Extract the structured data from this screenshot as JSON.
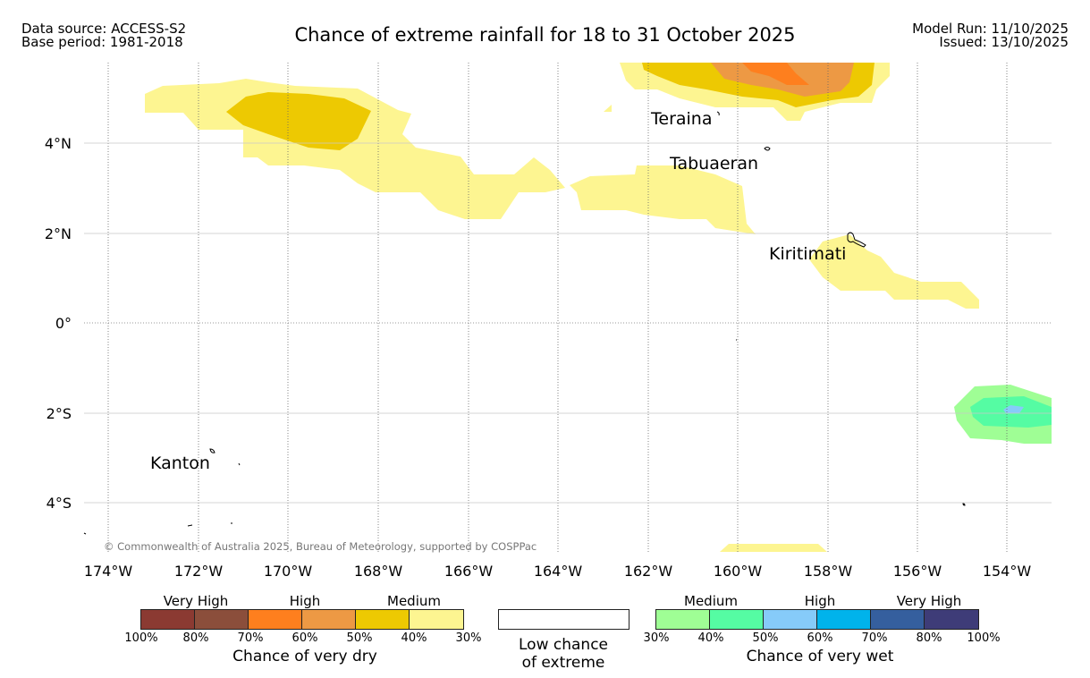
{
  "header": {
    "source_line": "Data source: ACCESS-S2",
    "base_line": "Base period: 1981-2018",
    "title": "Chance of extreme rainfall for 18 to 31 October 2025",
    "model_run": "Model Run: 11/10/2025",
    "issued": "Issued: 13/10/2025"
  },
  "map": {
    "copyright": "© Commonwealth of Australia 2025, Bureau of Meteorology, supported by COSPPac",
    "lon_ticks": [
      "174°W",
      "172°W",
      "170°W",
      "168°W",
      "166°W",
      "164°W",
      "162°W",
      "160°W",
      "158°W",
      "156°W",
      "154°W"
    ],
    "lat_ticks": [
      "4°N",
      "2°N",
      "0°",
      "2°S",
      "4°S"
    ],
    "places": [
      "Teraina",
      "Tabuaeran",
      "Kiritimati",
      "Kanton"
    ],
    "colors": {
      "dry_30_40": "#fdf591",
      "dry_40_50": "#edc902",
      "dry_50_60": "#ed9944",
      "dry_60_70": "#fe7f1e",
      "wet_30_40": "#9ffe95",
      "wet_40_50": "#55fca3",
      "wet_50_60": "#86cbf9"
    }
  },
  "legend": {
    "dry": {
      "labels": [
        "Very High",
        "High",
        "Medium"
      ],
      "colors": [
        "#8b3a32",
        "#8b4e3b",
        "#fe7f1e",
        "#ed9944",
        "#edc902",
        "#fdf591"
      ],
      "pcts": [
        "100%",
        "80%",
        "70%",
        "60%",
        "50%",
        "40%",
        "30%"
      ],
      "title": "Chance of very dry"
    },
    "low": {
      "line1": "Low chance",
      "line2": "of extreme"
    },
    "wet": {
      "labels": [
        "Medium",
        "High",
        "Very High"
      ],
      "colors": [
        "#9ffe95",
        "#55fca3",
        "#86cbf9",
        "#00b3eb",
        "#355f9e",
        "#3e3c78"
      ],
      "pcts": [
        "30%",
        "40%",
        "50%",
        "60%",
        "70%",
        "80%",
        "100%"
      ],
      "title": "Chance of very wet"
    }
  }
}
